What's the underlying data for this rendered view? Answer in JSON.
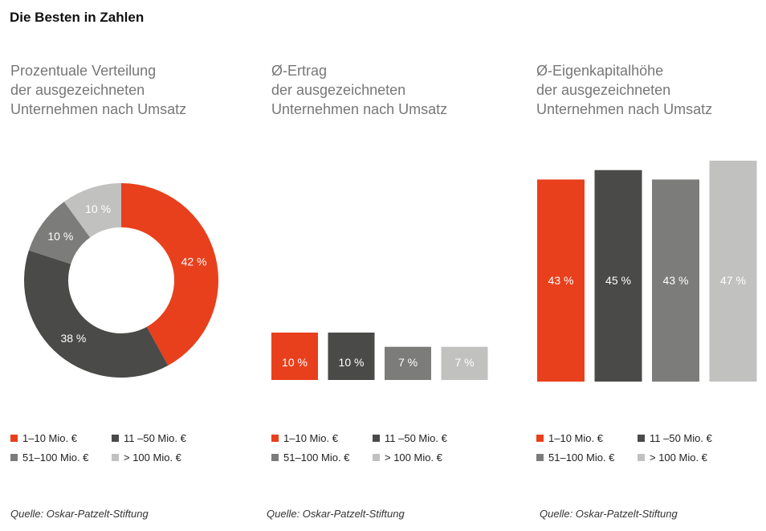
{
  "page_title": "Die Besten in Zahlen",
  "colors": {
    "c1": "#e8401c",
    "c2": "#4a4a49",
    "c3": "#7c7c7b",
    "c4": "#c1c1c0"
  },
  "chart_data": [
    {
      "type": "pie",
      "title_lines": [
        "Prozentuale Verteilung",
        "der ausgezeichneten",
        "Unternehmen nach Umsatz"
      ],
      "categories": [
        "1–10 Mio. €",
        "11–50 Mio. €",
        "51–100 Mio. €",
        "> 100 Mio. €"
      ],
      "values": [
        42,
        38,
        10,
        10
      ],
      "value_labels": [
        "42 %",
        "38 %",
        "10 %",
        "10 %"
      ],
      "legend_labels": [
        "1–10 Mio. €",
        "11 –50 Mio. €",
        "51–100 Mio. €",
        "> 100 Mio. €"
      ],
      "source": "Quelle: Oskar-Patzelt-Stiftung"
    },
    {
      "type": "bar",
      "title_lines": [
        "Ø-Ertrag",
        "der ausgezeichneten",
        "Unternehmen nach Umsatz"
      ],
      "categories": [
        "1–10 Mio. €",
        "11–50 Mio. €",
        "51–100 Mio. €",
        "> 100 Mio. €"
      ],
      "values": [
        10,
        10,
        7,
        7
      ],
      "value_labels": [
        "10 %",
        "10 %",
        "7 %",
        "7 %"
      ],
      "legend_labels": [
        "1–10 Mio. €",
        "11 –50 Mio. €",
        "51–100 Mio. €",
        "> 100 Mio. €"
      ],
      "source": "Quelle: Oskar-Patzelt-Stiftung"
    },
    {
      "type": "bar",
      "title_lines": [
        "Ø-Eigenkapitalhöhe",
        "der ausgezeichneten",
        "Unternehmen nach Umsatz"
      ],
      "categories": [
        "1–10 Mio. €",
        "11–50 Mio. €",
        "51–100 Mio. €",
        "> 100 Mio. €"
      ],
      "values": [
        43,
        45,
        43,
        47
      ],
      "value_labels": [
        "43 %",
        "45 %",
        "43 %",
        "47 %"
      ],
      "legend_labels": [
        "1–10 Mio. €",
        "11 –50 Mio. €",
        "51–100 Mio. €",
        "> 100 Mio. €"
      ],
      "source": "Quelle: Oskar-Patzelt-Stiftung"
    }
  ]
}
